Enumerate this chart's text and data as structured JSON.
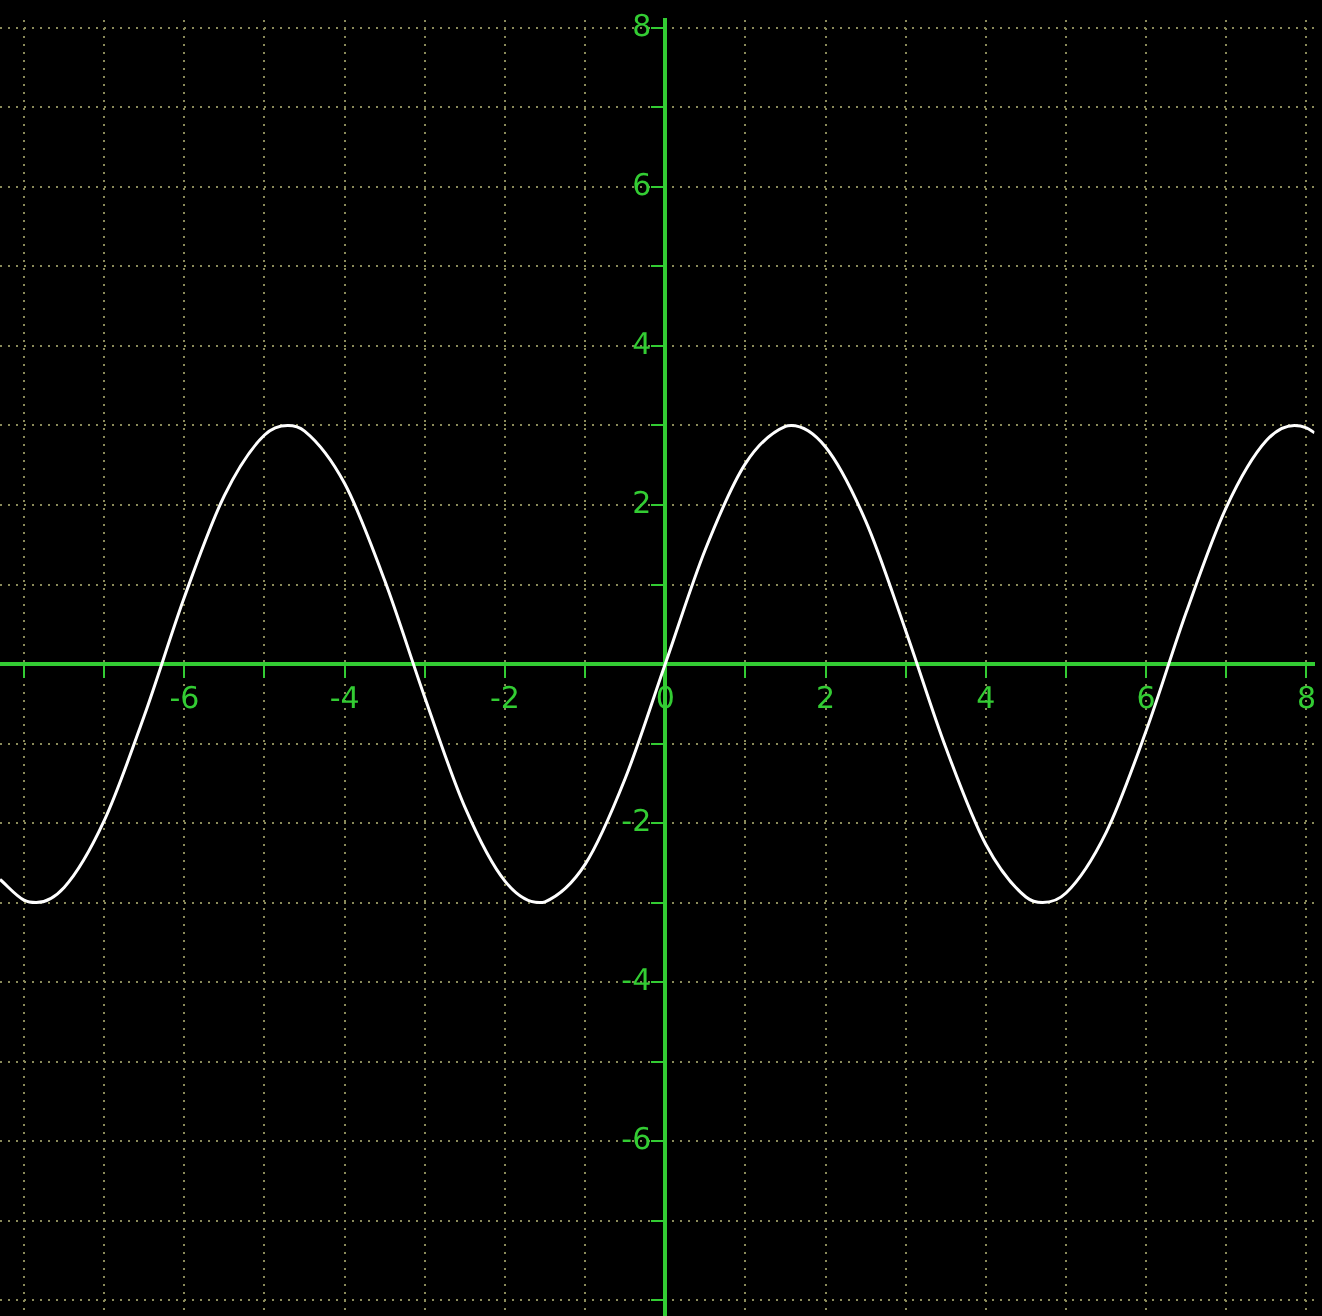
{
  "chart_data": {
    "type": "line",
    "marker": "none",
    "grid": true,
    "x": [
      -8.3,
      -8,
      -7.85,
      -7.5,
      -7,
      -6.5,
      -6,
      -5.5,
      -5,
      -4.71,
      -4.5,
      -4,
      -3.5,
      -3,
      -2.5,
      -2,
      -1.57,
      -1.5,
      -1,
      -0.5,
      0,
      0.5,
      1,
      1.5,
      1.57,
      2,
      2.5,
      3,
      3.5,
      4,
      4.5,
      4.71,
      5,
      5.5,
      6,
      6.5,
      7,
      7.5,
      7.85,
      8,
      8.1
    ],
    "series": [
      {
        "color": "#ffffff",
        "values": [
          -2.71,
          -2.97,
          -3,
          -2.81,
          -1.97,
          -0.65,
          0.84,
          2.12,
          2.88,
          3,
          2.93,
          2.27,
          1.05,
          -0.42,
          -1.8,
          -2.73,
          -3,
          -2.99,
          -2.52,
          -1.44,
          0,
          1.44,
          2.52,
          2.99,
          3,
          2.73,
          1.8,
          0.42,
          -1.05,
          -2.27,
          -2.93,
          -3,
          -2.88,
          -2.12,
          -0.84,
          0.65,
          1.97,
          2.81,
          3,
          2.97,
          2.91
        ]
      }
    ],
    "xlim": [
      -8.3,
      8.1
    ],
    "ylim": [
      -8.2,
      8.1
    ],
    "xticks": [
      {
        "value": -8,
        "label": null
      },
      {
        "value": -7,
        "label": null
      },
      -6,
      {
        "value": -5,
        "label": null
      },
      -4,
      {
        "value": -3,
        "label": null
      },
      -2,
      {
        "value": -1,
        "label": null
      },
      0,
      {
        "value": 1,
        "label": null
      },
      2,
      {
        "value": 3,
        "label": null
      },
      4,
      {
        "value": 5,
        "label": null
      },
      6,
      {
        "value": 7,
        "label": null
      },
      8
    ],
    "yticks": [
      {
        "value": -8,
        "label": null
      },
      {
        "value": -7,
        "label": null
      },
      -6,
      {
        "value": -5,
        "label": null
      },
      -4,
      {
        "value": -3,
        "label": null
      },
      -2,
      {
        "value": -1,
        "label": null
      },
      {
        "value": 0,
        "label": null
      },
      {
        "value": 1,
        "label": null
      },
      2,
      {
        "value": 3,
        "label": null
      },
      4,
      {
        "value": 5,
        "label": null
      },
      6,
      {
        "value": 7,
        "label": null
      },
      8
    ]
  }
}
